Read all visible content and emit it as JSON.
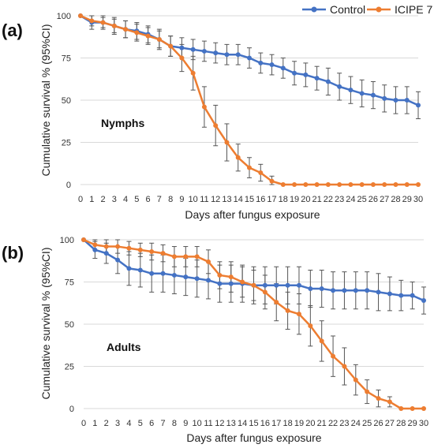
{
  "legend": [
    {
      "label": "Control",
      "color": "#4472C4"
    },
    {
      "label": "ICIPE 7",
      "color": "#ED7D31"
    }
  ],
  "chart_data": [
    {
      "type": "line",
      "panel_label": "(a)",
      "annotation": "Nymphs",
      "xlabel": "Days after fungus exposure",
      "ylabel": "Cumulative survival % (95%CI)",
      "x": [
        0,
        1,
        2,
        3,
        4,
        5,
        6,
        7,
        8,
        9,
        10,
        11,
        12,
        13,
        14,
        15,
        16,
        17,
        18,
        19,
        20,
        21,
        22,
        23,
        24,
        25,
        26,
        27,
        28,
        29,
        30
      ],
      "ylim": [
        0,
        100
      ],
      "yticks": [
        0,
        25,
        50,
        75,
        100
      ],
      "grid": "horizontal",
      "legend_position": "top-right",
      "series": [
        {
          "name": "Control",
          "color": "#4472C4",
          "values": [
            100,
            96,
            96,
            94,
            92,
            91,
            89,
            86,
            82,
            81,
            80,
            79,
            78,
            77,
            77,
            75,
            72,
            71,
            69,
            66,
            65,
            63,
            61,
            58,
            56,
            54,
            53,
            51,
            50,
            50,
            47
          ],
          "error": [
            0,
            4,
            4,
            5,
            5,
            5,
            5,
            6,
            6,
            6,
            6,
            6,
            6,
            6,
            6,
            6,
            6,
            6,
            6,
            7,
            7,
            7,
            8,
            8,
            8,
            8,
            8,
            8,
            8,
            8,
            8
          ]
        },
        {
          "name": "ICIPE 7",
          "color": "#ED7D31",
          "values": [
            100,
            97,
            96,
            94,
            92,
            90,
            88,
            86,
            82,
            75,
            66,
            46,
            35,
            25,
            16,
            10,
            7,
            2,
            0,
            0,
            0,
            0,
            0,
            0,
            0,
            0,
            0,
            0,
            0,
            0,
            0
          ],
          "error": [
            0,
            3,
            3,
            4,
            5,
            5,
            5,
            5,
            6,
            8,
            10,
            12,
            12,
            11,
            8,
            6,
            5,
            3,
            0,
            0,
            0,
            0,
            0,
            0,
            0,
            0,
            0,
            0,
            0,
            0,
            0
          ]
        }
      ]
    },
    {
      "type": "line",
      "panel_label": "(b)",
      "annotation": "Adults",
      "xlabel": "Days after fungus exposure",
      "ylabel": "Cumulative survival % (95%CI)",
      "x": [
        0,
        1,
        2,
        3,
        4,
        5,
        6,
        7,
        8,
        9,
        10,
        11,
        12,
        13,
        14,
        15,
        16,
        17,
        18,
        19,
        20,
        21,
        22,
        23,
        24,
        25,
        26,
        27,
        28,
        29,
        30
      ],
      "ylim": [
        0,
        100
      ],
      "yticks": [
        0,
        25,
        50,
        75,
        100
      ],
      "grid": "horizontal",
      "series": [
        {
          "name": "Control",
          "color": "#4472C4",
          "values": [
            100,
            94,
            92,
            88,
            83,
            82,
            80,
            80,
            79,
            78,
            77,
            76,
            74,
            74,
            74,
            73,
            73,
            73,
            73,
            73,
            71,
            71,
            70,
            70,
            70,
            70,
            69,
            68,
            67,
            67,
            64
          ],
          "error": [
            0,
            5,
            6,
            8,
            10,
            10,
            11,
            11,
            11,
            11,
            11,
            11,
            11,
            11,
            11,
            11,
            11,
            11,
            11,
            11,
            11,
            11,
            11,
            11,
            11,
            11,
            11,
            10,
            9,
            8,
            8
          ]
        },
        {
          "name": "ICIPE 7",
          "color": "#ED7D31",
          "values": [
            100,
            97,
            96,
            96,
            95,
            94,
            93,
            92,
            90,
            90,
            90,
            87,
            79,
            78,
            75,
            73,
            69,
            63,
            58,
            56,
            49,
            40,
            31,
            25,
            17,
            10,
            6,
            4,
            0,
            0,
            0
          ],
          "error": [
            0,
            3,
            4,
            4,
            4,
            4,
            5,
            5,
            6,
            6,
            6,
            7,
            8,
            9,
            9,
            9,
            10,
            11,
            11,
            12,
            12,
            12,
            12,
            11,
            9,
            7,
            5,
            3,
            0,
            0,
            0
          ]
        }
      ]
    }
  ]
}
